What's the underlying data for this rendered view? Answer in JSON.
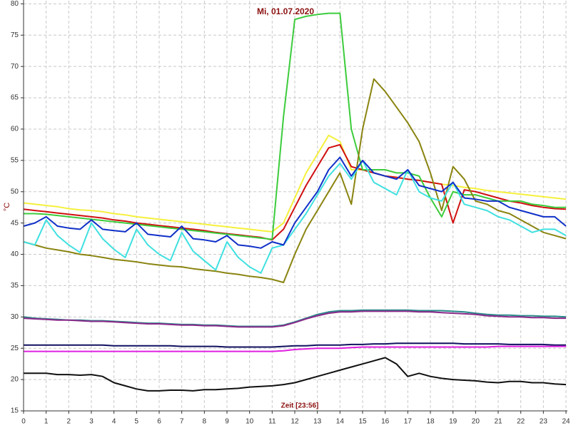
{
  "chart_data": {
    "type": "line",
    "title": "Mi, 01.07.2020",
    "y_label": "°C",
    "x_label": "Zeit [23:56]",
    "x": [
      0,
      0.5,
      1,
      1.5,
      2,
      2.5,
      3,
      3.5,
      4,
      4.5,
      5,
      5.5,
      6,
      6.5,
      7,
      7.5,
      8,
      8.5,
      9,
      9.5,
      10,
      10.5,
      11,
      11.5,
      12,
      12.5,
      13,
      13.5,
      14,
      14.5,
      15,
      15.5,
      16,
      16.5,
      17,
      17.5,
      18,
      18.5,
      19,
      19.5,
      20,
      20.5,
      21,
      21.5,
      22,
      22.5,
      23,
      23.5,
      24
    ],
    "xlim": [
      0,
      24
    ],
    "xticks": [
      0,
      1,
      2,
      3,
      4,
      5,
      6,
      7,
      8,
      9,
      10,
      11,
      12,
      13,
      14,
      15,
      16,
      17,
      18,
      19,
      20,
      21,
      22,
      23,
      24
    ],
    "ylim": [
      15,
      80.5
    ],
    "yticks": [
      15,
      20,
      25,
      30,
      35,
      40,
      45,
      50,
      55,
      60,
      65,
      70,
      75,
      80
    ],
    "grid": true,
    "series": [
      {
        "color": "#f5f03c",
        "values": [
          48.2,
          48,
          47.8,
          47.6,
          47.3,
          47.1,
          47,
          46.8,
          46.5,
          46.3,
          46,
          45.8,
          45.6,
          45.4,
          45.2,
          45,
          44.8,
          44.6,
          44.4,
          44.2,
          44,
          43.8,
          43.6,
          45,
          49,
          53,
          56,
          59,
          58,
          53.5,
          53.5,
          53,
          52.5,
          52.3,
          52,
          51.8,
          51.5,
          51.2,
          51,
          50.7,
          50.5,
          50.2,
          50,
          49.8,
          49.6,
          49.4,
          49.2,
          49,
          48.8
        ]
      },
      {
        "color": "#d01010",
        "values": [
          47.2,
          47,
          46.8,
          46.6,
          46.4,
          46.2,
          46,
          45.8,
          45.5,
          45.3,
          45,
          44.8,
          44.6,
          44.4,
          44.2,
          44,
          43.8,
          43.5,
          43.3,
          43.1,
          42.9,
          42.7,
          42.3,
          44,
          47.5,
          51,
          54,
          57,
          57.5,
          54,
          53.5,
          53,
          52.5,
          52.3,
          52,
          51.8,
          51.5,
          51.2,
          45,
          50.3,
          50,
          49.5,
          49,
          48.5,
          48.2,
          47.8,
          47.5,
          47.3,
          47.2
        ]
      },
      {
        "color": "#3ccc3c",
        "values": [
          46.5,
          46.5,
          46.4,
          46.2,
          46,
          45.8,
          45.6,
          45.4,
          45.2,
          45,
          44.8,
          44.6,
          44.4,
          44.2,
          44,
          43.8,
          43.6,
          43.4,
          43.2,
          43,
          42.8,
          42.6,
          42.4,
          62,
          77.5,
          78,
          78.3,
          78.5,
          78.5,
          60,
          53.5,
          53.5,
          53.5,
          53,
          53,
          52.5,
          49,
          46,
          50,
          49.5,
          49.5,
          49,
          48.5,
          48.5,
          48.5,
          48,
          47.8,
          47.5,
          47.5
        ]
      },
      {
        "color": "#8a8410",
        "values": [
          42,
          41.5,
          41,
          40.7,
          40.4,
          40,
          39.8,
          39.5,
          39.2,
          39,
          38.8,
          38.5,
          38.3,
          38.1,
          38,
          37.7,
          37.5,
          37.3,
          37,
          36.8,
          36.5,
          36.3,
          36,
          35.5,
          40,
          44,
          47,
          50,
          53,
          48,
          60,
          68,
          66,
          63.5,
          61,
          58,
          53,
          47,
          54,
          52,
          48.5,
          48,
          47,
          46.5,
          45.5,
          44.5,
          43.5,
          43,
          42.5
        ]
      },
      {
        "color": "#40e0e0",
        "values": [
          42,
          41.5,
          45.5,
          43,
          41.5,
          40.3,
          45,
          42.5,
          40.8,
          39.5,
          44,
          41.5,
          40,
          39,
          43.5,
          40.5,
          39,
          37.5,
          42,
          39.5,
          38,
          37,
          41,
          41.5,
          44,
          46.5,
          49.5,
          52.5,
          54.5,
          52,
          55,
          51.5,
          50.5,
          49.5,
          53.5,
          50,
          49,
          48.5,
          51.5,
          48,
          47.5,
          47,
          46,
          45.5,
          44.5,
          43.5,
          44,
          44,
          43
        ]
      },
      {
        "color": "#1030c8",
        "values": [
          44.5,
          45,
          46,
          44.5,
          44.2,
          44,
          45.5,
          44,
          43.8,
          43.6,
          45,
          43.2,
          43,
          42.8,
          44.5,
          42.5,
          42.3,
          42,
          43,
          41.5,
          41.3,
          41,
          42,
          41.5,
          45,
          47.5,
          50,
          53.5,
          55.5,
          52.5,
          55,
          53,
          52.5,
          52,
          53.5,
          51,
          50.5,
          50,
          51.5,
          49,
          48.8,
          48.5,
          48.5,
          47.5,
          47,
          46.5,
          46,
          46,
          44.5
        ]
      },
      {
        "color": "#2a8a8a",
        "values": [
          30,
          29.8,
          29.7,
          29.6,
          29.5,
          29.5,
          29.4,
          29.4,
          29.3,
          29.2,
          29.1,
          29,
          29,
          28.9,
          28.8,
          28.8,
          28.7,
          28.7,
          28.6,
          28.5,
          28.5,
          28.5,
          28.5,
          28.7,
          29.2,
          29.8,
          30.4,
          30.8,
          31,
          31,
          31.1,
          31.1,
          31.1,
          31.1,
          31.1,
          31,
          31,
          31,
          30.9,
          30.8,
          30.6,
          30.4,
          30.3,
          30.3,
          30.2,
          30.2,
          30.1,
          30.1,
          30
        ]
      },
      {
        "color": "#8a2a8a",
        "values": [
          29.8,
          29.7,
          29.6,
          29.5,
          29.5,
          29.4,
          29.3,
          29.3,
          29.2,
          29.1,
          29,
          28.9,
          28.9,
          28.8,
          28.7,
          28.7,
          28.6,
          28.6,
          28.5,
          28.4,
          28.4,
          28.4,
          28.4,
          28.6,
          29.1,
          29.7,
          30.2,
          30.6,
          30.8,
          30.8,
          30.9,
          30.9,
          30.9,
          30.9,
          30.9,
          30.8,
          30.8,
          30.7,
          30.6,
          30.5,
          30.4,
          30.2,
          30.1,
          30,
          30,
          29.9,
          29.9,
          29.8,
          29.8
        ]
      },
      {
        "color": "#101060",
        "values": [
          25.5,
          25.5,
          25.5,
          25.5,
          25.5,
          25.5,
          25.5,
          25.5,
          25.4,
          25.4,
          25.4,
          25.4,
          25.4,
          25.4,
          25.3,
          25.3,
          25.3,
          25.3,
          25.2,
          25.2,
          25.2,
          25.2,
          25.2,
          25.3,
          25.4,
          25.4,
          25.5,
          25.5,
          25.5,
          25.6,
          25.6,
          25.7,
          25.7,
          25.8,
          25.8,
          25.8,
          25.8,
          25.8,
          25.8,
          25.7,
          25.7,
          25.7,
          25.7,
          25.6,
          25.6,
          25.6,
          25.6,
          25.5,
          25.5
        ]
      },
      {
        "color": "#e020e0",
        "values": [
          24.5,
          24.5,
          24.5,
          24.5,
          24.5,
          24.5,
          24.5,
          24.5,
          24.5,
          24.5,
          24.5,
          24.5,
          24.5,
          24.5,
          24.5,
          24.5,
          24.5,
          24.5,
          24.5,
          24.5,
          24.5,
          24.5,
          24.5,
          24.6,
          24.8,
          24.9,
          25,
          25,
          25,
          25.1,
          25.2,
          25.2,
          25.2,
          25.2,
          25.2,
          25.2,
          25.2,
          25.2,
          25.2,
          25.2,
          25.2,
          25.2,
          25.3,
          25.3,
          25.3,
          25.3,
          25.3,
          25.3,
          25.3
        ]
      },
      {
        "color": "#101010",
        "values": [
          21,
          21,
          21,
          20.8,
          20.8,
          20.7,
          20.8,
          20.5,
          19.5,
          19,
          18.5,
          18.2,
          18.2,
          18.3,
          18.3,
          18.2,
          18.4,
          18.4,
          18.5,
          18.6,
          18.8,
          18.9,
          19,
          19.2,
          19.5,
          20,
          20.5,
          21,
          21.5,
          22,
          22.5,
          23,
          23.5,
          22.5,
          20.5,
          21,
          20.5,
          20.2,
          20,
          19.9,
          19.8,
          19.6,
          19.5,
          19.7,
          19.7,
          19.5,
          19.5,
          19.3,
          19.2
        ]
      }
    ]
  }
}
